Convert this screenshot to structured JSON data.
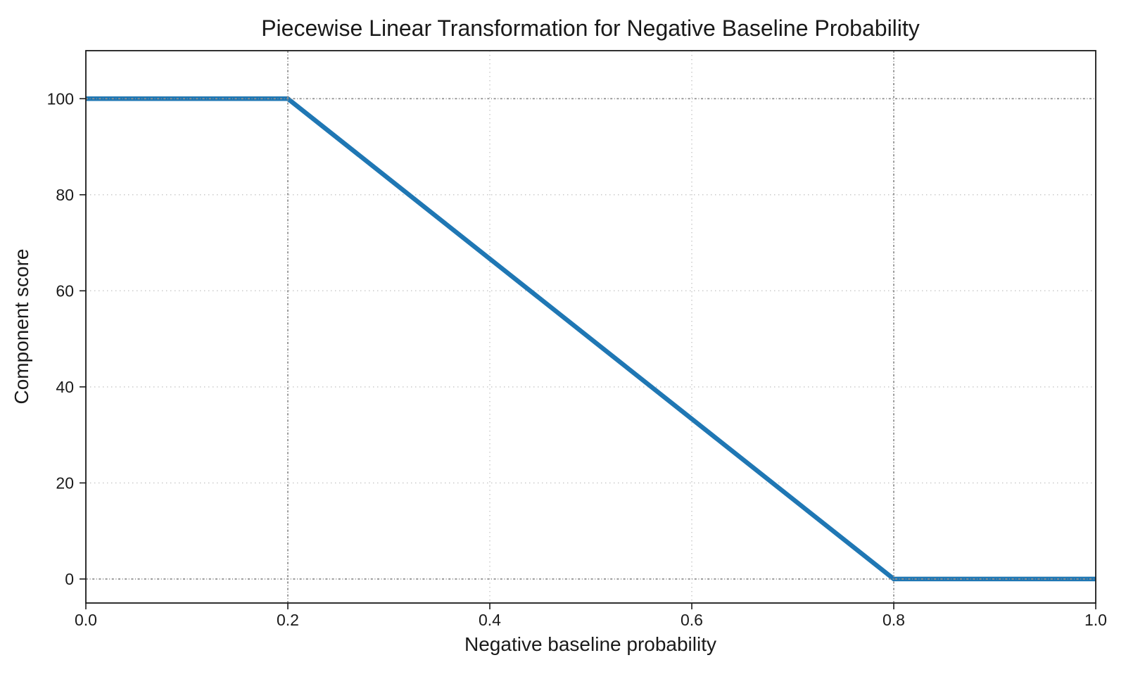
{
  "chart_data": {
    "type": "line",
    "title": "Piecewise Linear Transformation for Negative Baseline Probability",
    "xlabel": "Negative baseline probability",
    "ylabel": "Component score",
    "xlim": [
      0.0,
      1.0
    ],
    "ylim": [
      -5,
      110
    ],
    "xticks": [
      0.0,
      0.2,
      0.4,
      0.6,
      0.8,
      1.0
    ],
    "xtick_labels": [
      "0.0",
      "0.2",
      "0.4",
      "0.6",
      "0.8",
      "1.0"
    ],
    "yticks": [
      0,
      20,
      40,
      60,
      80,
      100
    ],
    "ytick_labels": [
      "0",
      "20",
      "40",
      "60",
      "80",
      "100"
    ],
    "series": [
      {
        "name": "component-score",
        "color": "#1f77b4",
        "width": 6.5,
        "points": [
          [
            0.0,
            100
          ],
          [
            0.2,
            100
          ],
          [
            0.8,
            0
          ],
          [
            1.0,
            0
          ]
        ]
      }
    ],
    "reference_lines": {
      "style": "dashdot",
      "color": "#8f8f8f",
      "x": [
        0.2,
        0.8
      ],
      "y": [
        0,
        100
      ]
    },
    "grid": {
      "on": true,
      "style": "dotted",
      "color": "#c9c9c9",
      "x": [
        0.4,
        0.6
      ],
      "y": [
        20,
        40,
        60,
        80
      ]
    },
    "legend": "none"
  }
}
